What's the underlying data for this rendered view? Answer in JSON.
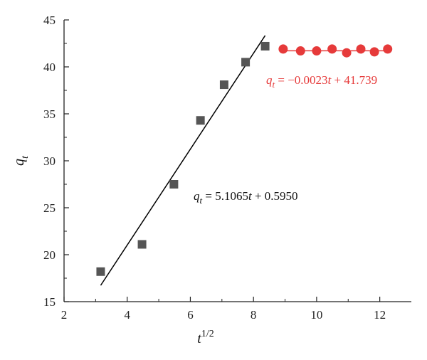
{
  "chart_data": {
    "type": "scatter",
    "title": "",
    "xlabel": {
      "base": "t",
      "sup": "1/2"
    },
    "ylabel": {
      "base": "q",
      "sub": "t"
    },
    "xlim": [
      2,
      13
    ],
    "ylim": [
      15,
      45
    ],
    "x_ticks": [
      2,
      4,
      6,
      8,
      10,
      12
    ],
    "y_ticks": [
      15,
      20,
      25,
      30,
      35,
      40,
      45
    ],
    "grid": false,
    "legend": "none",
    "series": [
      {
        "marker": "square",
        "color": "#555555",
        "x": [
          3.16,
          4.47,
          5.48,
          6.32,
          7.07,
          7.75,
          8.37
        ],
        "y": [
          18.2,
          21.1,
          27.5,
          34.3,
          38.1,
          40.5,
          42.2
        ],
        "fit": {
          "slope": 5.1065,
          "intercept": 0.595,
          "x_range": [
            3.16,
            8.37
          ],
          "color": "#000000"
        },
        "equation": {
          "lhs": "q",
          "lhs_sub": "t",
          "rhs_prefix": " = 5.1065",
          "var": "t",
          "rhs_suffix": " + 0.5950",
          "color": "#111111"
        }
      },
      {
        "marker": "circle",
        "color": "#e63a3a",
        "x": [
          8.94,
          9.49,
          10.0,
          10.49,
          10.95,
          11.4,
          11.83,
          12.25
        ],
        "y": [
          41.9,
          41.7,
          41.7,
          41.9,
          41.5,
          41.9,
          41.6,
          41.9
        ],
        "fit": {
          "slope": -0.0023,
          "intercept": 41.739,
          "x_range": [
            8.94,
            12.25
          ],
          "color": "#e63a3a"
        },
        "equation": {
          "lhs": "q",
          "lhs_sub": "t",
          "rhs_prefix": " = −0.0023",
          "var": "t",
          "rhs_suffix": " + 41.739",
          "color": "#e63a3a"
        }
      }
    ]
  }
}
